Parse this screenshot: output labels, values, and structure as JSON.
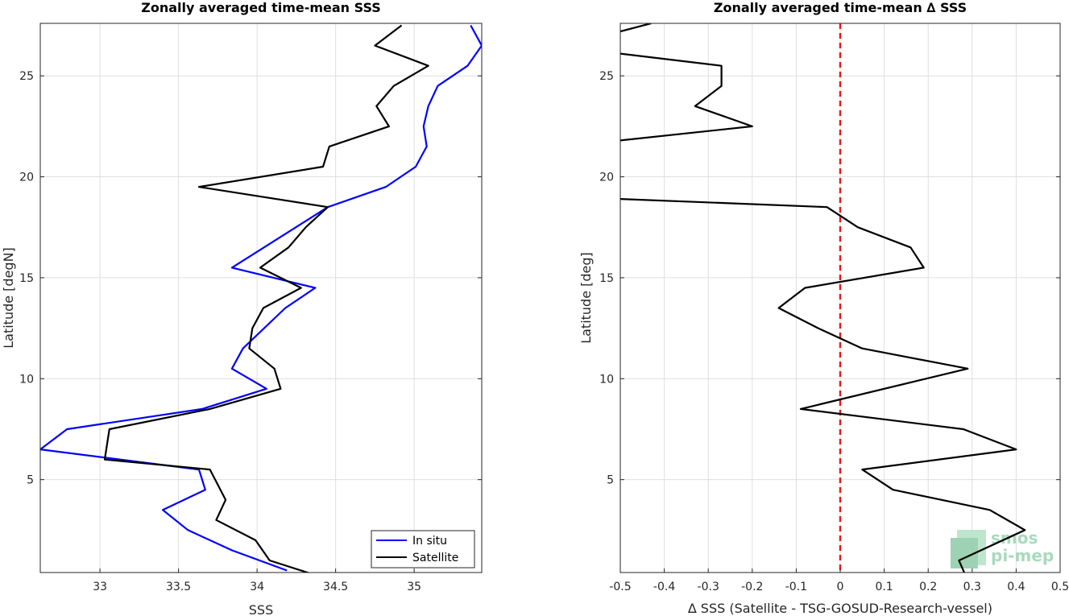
{
  "chart_data": [
    {
      "type": "line",
      "title": "Zonally averaged time-mean SSS",
      "xlabel": "SSS",
      "ylabel": "Latitude [degN]",
      "xlim": [
        32.62,
        35.43
      ],
      "ylim": [
        0.4,
        27.6
      ],
      "xticks": [
        33,
        33.5,
        34,
        34.5,
        35
      ],
      "yticks": [
        5,
        10,
        15,
        20,
        25
      ],
      "grid": true,
      "legend_position": "bottom-right",
      "series": [
        {
          "name": "In situ",
          "color": "#0000ff",
          "x": [
            34.19,
            33.84,
            33.56,
            33.4,
            33.67,
            33.63,
            32.62,
            32.79,
            33.65,
            34.06,
            33.84,
            33.91,
            34.18,
            34.37,
            33.84,
            34.45,
            34.82,
            35.01,
            35.08,
            35.06,
            35.09,
            35.15,
            35.34,
            35.43,
            35.36
          ],
          "y": [
            0.5,
            1.5,
            2.5,
            3.5,
            4.5,
            5.5,
            6.5,
            7.5,
            8.5,
            9.5,
            10.5,
            11.5,
            13.5,
            14.5,
            15.5,
            18.5,
            19.5,
            20.5,
            21.5,
            22.5,
            23.5,
            24.5,
            25.5,
            26.5,
            27.5
          ]
        },
        {
          "name": "Satellite",
          "color": "#000000",
          "x": [
            34.48,
            34.08,
            33.99,
            33.74,
            33.8,
            33.7,
            33.03,
            33.06,
            33.7,
            34.15,
            34.11,
            33.95,
            33.97,
            34.04,
            34.28,
            34.02,
            34.2,
            34.31,
            34.45,
            33.63,
            34.42,
            34.46,
            34.84,
            34.76,
            34.87,
            35.09,
            34.75,
            34.92
          ],
          "y": [
            0.0,
            1.0,
            2.0,
            3.0,
            4.0,
            5.5,
            6.0,
            7.5,
            8.5,
            9.5,
            10.5,
            11.5,
            12.5,
            13.5,
            14.5,
            15.5,
            16.5,
            17.5,
            18.5,
            19.5,
            20.5,
            21.5,
            22.5,
            23.5,
            24.5,
            25.5,
            26.5,
            27.5
          ]
        }
      ]
    },
    {
      "type": "line",
      "title": "Zonally averaged time-mean ∆ SSS",
      "xlabel": "∆ SSS (Satellite - TSG-GOSUD-Research-vessel)",
      "ylabel": "Latitude [deg]",
      "xlim": [
        -0.5,
        0.5
      ],
      "ylim": [
        0.4,
        27.6
      ],
      "xticks": [
        -0.5,
        -0.4,
        -0.3,
        -0.2,
        -0.1,
        0,
        0.1,
        0.2,
        0.3,
        0.4,
        0.5
      ],
      "yticks": [
        5,
        10,
        15,
        20,
        25
      ],
      "grid": true,
      "reference_line": {
        "x": 0,
        "color": "#e41a1c",
        "style": "dashed"
      },
      "series": [
        {
          "name": "",
          "color": "#000000",
          "segments": [
            {
              "x": [
                0.29,
                0.27,
                0.42,
                0.34,
                0.12,
                0.05,
                0.4,
                0.28,
                -0.09,
                0.29,
                0.05,
                -0.05,
                -0.14,
                -0.08,
                0.19,
                0.16,
                0.04,
                -0.03,
                -0.5
              ],
              "y": [
                0.0,
                1.0,
                2.5,
                3.5,
                4.5,
                5.5,
                6.5,
                7.5,
                8.5,
                10.5,
                11.5,
                12.5,
                13.5,
                14.5,
                15.5,
                16.5,
                17.5,
                18.5,
                18.9
              ]
            },
            {
              "x": [
                -0.5,
                -0.2,
                -0.33,
                -0.27,
                -0.27,
                -0.5
              ],
              "y": [
                21.8,
                22.5,
                23.5,
                24.5,
                25.5,
                26.1
              ]
            },
            {
              "x": [
                -0.5,
                -0.43
              ],
              "y": [
                27.2,
                27.6
              ]
            }
          ]
        }
      ]
    }
  ],
  "legend": {
    "items": [
      "In situ",
      "Satellite"
    ]
  },
  "watermark": {
    "line1": "smos",
    "line2": "pi-mep"
  }
}
